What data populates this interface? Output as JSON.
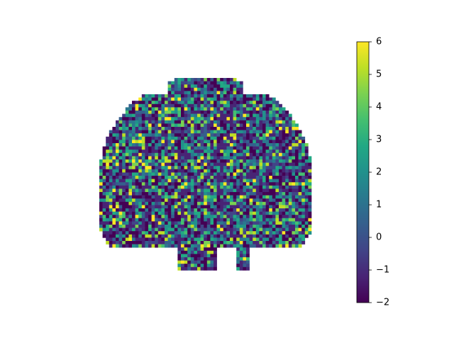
{
  "chart_data": {
    "type": "colorbar",
    "colormap": "viridis",
    "clim": [
      -2,
      6
    ],
    "ticks": [
      {
        "value": -2,
        "label": "−2"
      },
      {
        "value": -1,
        "label": "−1"
      },
      0,
      1,
      2,
      3,
      4,
      5,
      6
    ]
  }
}
